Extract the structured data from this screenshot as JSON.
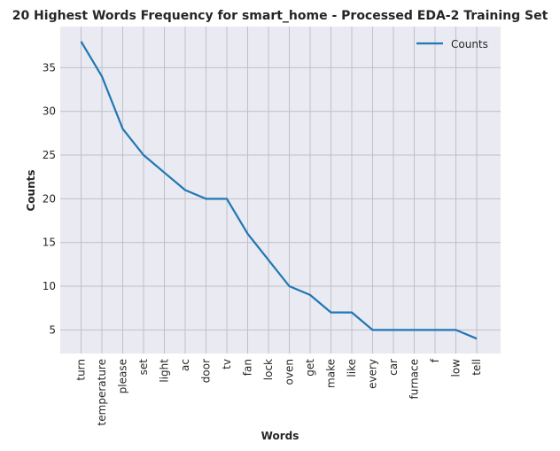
{
  "chart_data": {
    "type": "line",
    "title": "20 Highest Words Frequency for smart_home - Processed EDA-2 Training Set",
    "xlabel": "Words",
    "ylabel": "Counts",
    "categories": [
      "turn",
      "temperature",
      "please",
      "set",
      "light",
      "ac",
      "door",
      "tv",
      "fan",
      "lock",
      "oven",
      "get",
      "make",
      "like",
      "every",
      "car",
      "furnace",
      "f",
      "low",
      "tell"
    ],
    "series": [
      {
        "name": "Counts",
        "values": [
          38,
          34,
          28,
          25,
          23,
          21,
          20,
          20,
          16,
          13,
          10,
          9,
          7,
          7,
          5,
          5,
          5,
          5,
          5,
          4
        ],
        "color": "#1f77b4"
      }
    ],
    "yticks": [
      5,
      10,
      15,
      20,
      25,
      30,
      35
    ],
    "ylim": [
      2.3,
      39.7
    ],
    "grid": true,
    "legend": "top-right",
    "colors": {
      "background": "#eaeaf2",
      "grid": "#c0c0c8",
      "line": "#1f77b4"
    }
  }
}
